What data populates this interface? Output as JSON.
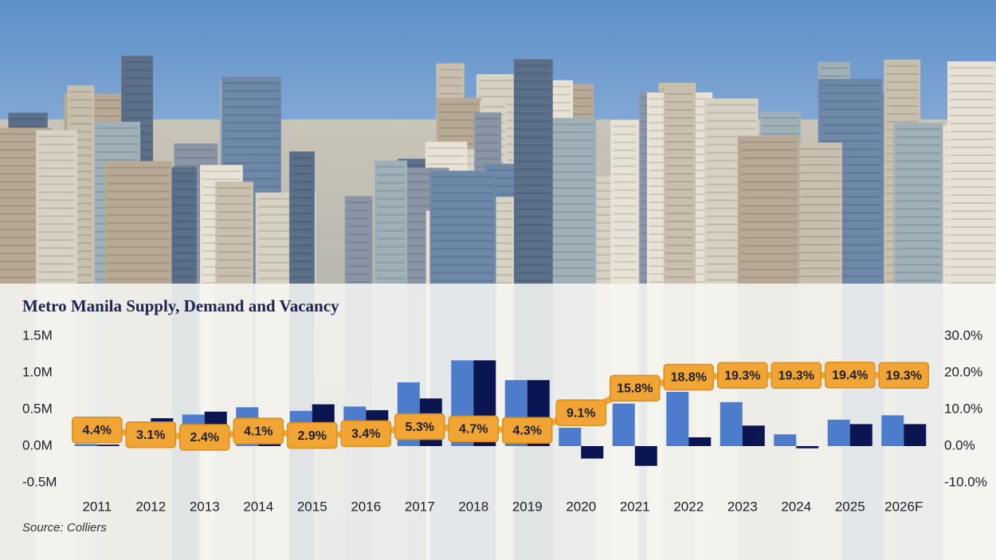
{
  "chart_data": {
    "type": "bar",
    "title": "Metro Manila Supply, Demand and Vacancy",
    "source": "Source: Colliers",
    "categories": [
      "2011",
      "2012",
      "2013",
      "2014",
      "2015",
      "2016",
      "2017",
      "2018",
      "2019",
      "2020",
      "2021",
      "2022",
      "2023",
      "2024",
      "2025",
      "2026F"
    ],
    "series": [
      {
        "color": "#4d7ccc",
        "values": [
          30000,
          300000,
          430000,
          530000,
          480000,
          540000,
          870000,
          1170000,
          900000,
          250000,
          580000,
          740000,
          600000,
          160000,
          360000,
          420000
        ]
      },
      {
        "color": "#0b1552",
        "values": [
          20000,
          380000,
          470000,
          300000,
          570000,
          490000,
          650000,
          1170000,
          900000,
          -170000,
          -270000,
          120000,
          280000,
          -30000,
          300000,
          300000
        ]
      },
      {
        "type": "line",
        "axis": "y2",
        "color": "#f0a534",
        "values": [
          4.4,
          3.1,
          2.4,
          4.1,
          2.9,
          3.4,
          5.3,
          4.7,
          4.3,
          9.1,
          15.8,
          18.8,
          19.3,
          19.3,
          19.4,
          19.3
        ],
        "value_labels": [
          "4.4%",
          "3.1%",
          "2.4%",
          "4.1%",
          "2.9%",
          "3.4%",
          "5.3%",
          "4.7%",
          "4.3%",
          "9.1%",
          "15.8%",
          "18.8%",
          "19.3%",
          "19.3%",
          "19.4%",
          "19.3%"
        ]
      }
    ],
    "ylim": [
      -500000,
      1500000
    ],
    "yticks": [
      {
        "value": -500000,
        "label": "-0.5M"
      },
      {
        "value": 0,
        "label": "0.0M"
      },
      {
        "value": 500000,
        "label": "0.5M"
      },
      {
        "value": 1000000,
        "label": "1.0M"
      },
      {
        "value": 1500000,
        "label": "1.5M"
      }
    ],
    "y2lim": [
      -10,
      30
    ],
    "y2ticks": [
      {
        "value": -10,
        "label": "-10.0%"
      },
      {
        "value": 0,
        "label": "0.0%"
      },
      {
        "value": 10,
        "label": "10.0%"
      },
      {
        "value": 20,
        "label": "20.0%"
      },
      {
        "value": 30,
        "label": "30.0%"
      }
    ],
    "grid": false
  }
}
